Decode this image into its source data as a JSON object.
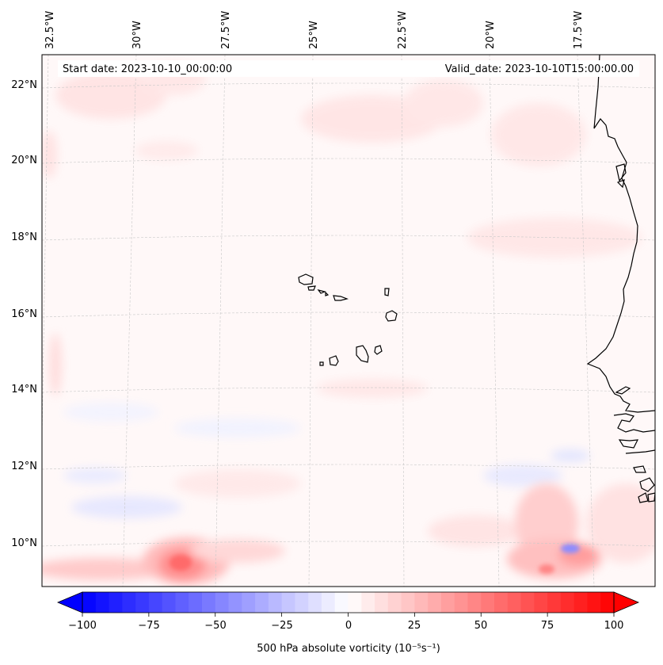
{
  "map": {
    "start_label": "Start date: 2023-10-10_00:00:00",
    "valid_label": "Valid_date: 2023-10-10T15:00:00.00",
    "lon_labels": [
      "32.5°W",
      "30°W",
      "27.5°W",
      "25°W",
      "22.5°W",
      "20°W",
      "17.5°W"
    ],
    "lat_labels": [
      "22°N",
      "20°N",
      "18°N",
      "16°N",
      "14°N",
      "12°N",
      "10°N"
    ],
    "gridline_color": "#c8c8c8",
    "coast_color": "#000000"
  },
  "colorbar": {
    "title": "500 hPa absolute vorticity (10⁻⁵s⁻¹)",
    "ticks": [
      "−100",
      "−75",
      "−50",
      "−25",
      "0",
      "25",
      "50",
      "75",
      "100"
    ],
    "min": -100,
    "max": 100,
    "neg_color": "#0000ff",
    "pos_color": "#ff0000",
    "mid_color": "#ffffff"
  }
}
